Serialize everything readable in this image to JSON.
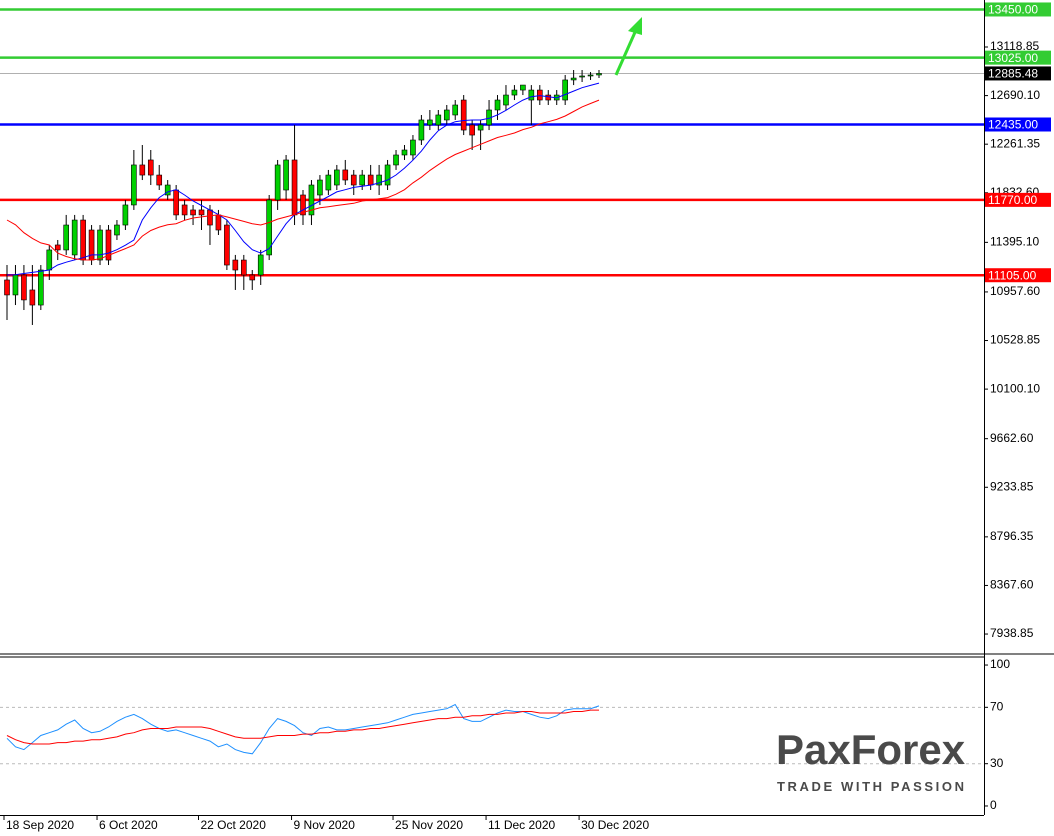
{
  "chart_data": [
    {
      "type": "candlestick",
      "categories": [
        "18 Sep 2020",
        null,
        null,
        null,
        null,
        null,
        null,
        null,
        null,
        null,
        null,
        "6 Oct 2020",
        null,
        null,
        null,
        null,
        null,
        null,
        null,
        null,
        null,
        null,
        null,
        "22 Oct 2020",
        null,
        null,
        null,
        null,
        null,
        null,
        null,
        null,
        null,
        null,
        "9 Nov 2020",
        null,
        null,
        null,
        null,
        null,
        null,
        null,
        null,
        null,
        null,
        null,
        "25 Nov 2020",
        null,
        null,
        null,
        null,
        null,
        null,
        null,
        null,
        null,
        null,
        "11 Dec 2020",
        null,
        null,
        null,
        null,
        null,
        null,
        null,
        null,
        null,
        null,
        "30 Dec 2020",
        null,
        null
      ],
      "open": [
        11063,
        10931,
        11107,
        10975,
        10842,
        11151,
        11372,
        11328,
        11284,
        11592,
        11504,
        11239,
        11504,
        11460,
        11548,
        11725,
        12078,
        12122,
        11989,
        11813,
        11857,
        11725,
        11681,
        11681,
        11681,
        11637,
        11548,
        11239,
        11239,
        11107,
        11107,
        11284,
        11769,
        11857,
        12122,
        11813,
        11637,
        11813,
        11857,
        11901,
        12034,
        11989,
        11901,
        11989,
        11901,
        11901,
        12078,
        12166,
        12166,
        12298,
        12431,
        12431,
        12475,
        12519,
        12651,
        12431,
        12386,
        12431,
        12563,
        12607,
        12695,
        12739,
        12651,
        12739,
        12695,
        12651,
        12651,
        12828,
        12854,
        12863,
        12872
      ],
      "high": [
        11195,
        11195,
        11195,
        11195,
        11195,
        11372,
        11416,
        11637,
        11637,
        11637,
        11548,
        11548,
        11548,
        11592,
        11769,
        12210,
        12254,
        12210,
        12078,
        11945,
        11901,
        11769,
        11725,
        11769,
        11725,
        11681,
        11592,
        11284,
        11284,
        11151,
        11328,
        11813,
        12122,
        12166,
        12431,
        11857,
        11945,
        11989,
        12034,
        12078,
        12122,
        12034,
        12034,
        12078,
        12078,
        12122,
        12210,
        12254,
        12342,
        12519,
        12563,
        12563,
        12607,
        12651,
        12695,
        12475,
        12475,
        12651,
        12695,
        12783,
        12783,
        12783,
        12783,
        12783,
        12739,
        12739,
        12872,
        12916,
        12916,
        12898,
        12916
      ],
      "low": [
        10710,
        10842,
        10798,
        10666,
        10798,
        11063,
        11239,
        11284,
        11239,
        11195,
        11195,
        11195,
        11195,
        11416,
        11504,
        11681,
        11945,
        11901,
        11857,
        11769,
        11592,
        11592,
        11548,
        11504,
        11372,
        11460,
        11151,
        10975,
        10975,
        10975,
        11019,
        11239,
        11681,
        11769,
        11548,
        11548,
        11548,
        11725,
        11813,
        11857,
        11901,
        11813,
        11857,
        11857,
        11813,
        11857,
        12034,
        12122,
        12122,
        12254,
        12386,
        12386,
        12431,
        12475,
        12342,
        12210,
        12210,
        12386,
        12475,
        12563,
        12651,
        12695,
        12431,
        12607,
        12607,
        12607,
        12607,
        12783,
        12810,
        12828,
        12845
      ],
      "close": [
        10931,
        11107,
        10887,
        10842,
        11151,
        11328,
        11328,
        11548,
        11592,
        11239,
        11239,
        11504,
        11239,
        11548,
        11725,
        12078,
        11989,
        11989,
        11901,
        11901,
        11637,
        11637,
        11637,
        11637,
        11548,
        11504,
        11195,
        11151,
        11107,
        11063,
        11284,
        11769,
        12078,
        12122,
        11637,
        11637,
        11901,
        11945,
        11989,
        12034,
        11945,
        11901,
        11989,
        11901,
        11989,
        12078,
        12166,
        12210,
        12298,
        12475,
        12475,
        12519,
        12563,
        12607,
        12386,
        12342,
        12431,
        12563,
        12651,
        12695,
        12739,
        12783,
        12739,
        12651,
        12651,
        12695,
        12828,
        12845,
        12863,
        12872,
        12885.48
      ],
      "up_color": "#00d000",
      "down_color": "#ff0000",
      "overlays": [
        {
          "color": "#0000ff",
          "values": [
            11107,
            11110,
            11120,
            11130,
            11140,
            11151,
            11195,
            11220,
            11240,
            11260,
            11284,
            11284,
            11300,
            11330,
            11370,
            11416,
            11592,
            11700,
            11790,
            11840,
            11860,
            11813,
            11760,
            11720,
            11680,
            11640,
            11592,
            11500,
            11400,
            11330,
            11300,
            11340,
            11450,
            11560,
            11640,
            11681,
            11720,
            11760,
            11800,
            11840,
            11860,
            11880,
            11890,
            11900,
            11920,
            11945,
            11989,
            12050,
            12120,
            12200,
            12298,
            12380,
            12430,
            12460,
            12470,
            12475,
            12475,
            12490,
            12520,
            12560,
            12607,
            12650,
            12680,
            12690,
            12680,
            12670,
            12700,
            12730,
            12760,
            12780,
            12800
          ]
        },
        {
          "color": "#ff0000",
          "values": [
            11592,
            11550,
            11480,
            11430,
            11390,
            11372,
            11300,
            11270,
            11250,
            11240,
            11239,
            11250,
            11280,
            11310,
            11340,
            11372,
            11450,
            11500,
            11530,
            11550,
            11560,
            11590,
            11610,
            11620,
            11630,
            11637,
            11620,
            11600,
            11580,
            11560,
            11548,
            11570,
            11600,
            11620,
            11640,
            11660,
            11680,
            11700,
            11710,
            11720,
            11730,
            11740,
            11760,
            11770,
            11780,
            11790,
            11820,
            11860,
            11920,
            11970,
            12030,
            12080,
            12130,
            12170,
            12200,
            12230,
            12260,
            12290,
            12320,
            12340,
            12360,
            12390,
            12410,
            12440,
            12460,
            12480,
            12510,
            12550,
            12590,
            12620,
            12650
          ]
        }
      ],
      "levels": [
        {
          "value": 13450,
          "label": "13450.00",
          "color": "#33cc33"
        },
        {
          "value": 13025,
          "label": "13025.00",
          "color": "#33cc33"
        },
        {
          "value": 12435,
          "label": "12435.00",
          "color": "#0000ff"
        },
        {
          "value": 11770,
          "label": "11770.00",
          "color": "#ff0000"
        },
        {
          "value": 11105,
          "label": "11105.00",
          "color": "#ff0000"
        }
      ],
      "price": 12885.48,
      "ylim": [
        7771.5,
        13533.6
      ],
      "yticks": [
        13118.85,
        {
          "value": 12690.1,
          "label": "12690.10"
        },
        12261.35,
        {
          "value": 11832.6,
          "label": "11832.60"
        },
        {
          "value": 11395.1,
          "label": "11395.10"
        },
        {
          "value": 10957.6,
          "label": "10957.60"
        },
        10528.85,
        {
          "value": 10100.1,
          "label": "10100.10"
        },
        {
          "value": 9662.6,
          "label": "9662.60"
        },
        9233.85,
        8796.35,
        {
          "value": 8367.6,
          "label": "8367.60"
        },
        7938.85
      ]
    },
    {
      "type": "line",
      "series": [
        {
          "color": "#1e90ff",
          "values": [
            48,
            42,
            40,
            45,
            50,
            52,
            54,
            58,
            61,
            55,
            52,
            53,
            56,
            60,
            63,
            65,
            62,
            58,
            55,
            53,
            54,
            52,
            50,
            48,
            46,
            42,
            44,
            40,
            38,
            37,
            45,
            55,
            62,
            60,
            57,
            52,
            50,
            55,
            56,
            54,
            54,
            55,
            56,
            57,
            58,
            59,
            61,
            63,
            65,
            66,
            67,
            68,
            69,
            72,
            62,
            60,
            60,
            63,
            66,
            68,
            67,
            67,
            65,
            63,
            62,
            64,
            68,
            69,
            69,
            69,
            71
          ]
        },
        {
          "color": "#ff0000",
          "values": [
            50,
            47,
            45,
            44,
            44,
            44,
            45,
            45,
            46,
            46,
            47,
            47,
            48,
            49,
            51,
            52,
            54,
            55,
            55,
            55,
            56,
            56,
            56,
            56,
            55,
            53,
            51,
            49,
            48,
            48,
            48,
            49,
            50,
            50,
            50,
            51,
            51,
            52,
            52,
            53,
            53,
            54,
            54,
            55,
            55,
            56,
            57,
            58,
            59,
            60,
            61,
            62,
            62,
            63,
            63,
            64,
            64,
            65,
            65,
            66,
            66,
            67,
            67,
            66,
            66,
            66,
            66,
            67,
            67,
            68,
            68
          ]
        }
      ],
      "ylim": [
        -6.4,
        105.7
      ],
      "yticks": [
        100,
        70,
        30,
        0
      ]
    }
  ],
  "logo": {
    "name": "PaxForex",
    "tagline": "TRADE WITH PASSION"
  }
}
